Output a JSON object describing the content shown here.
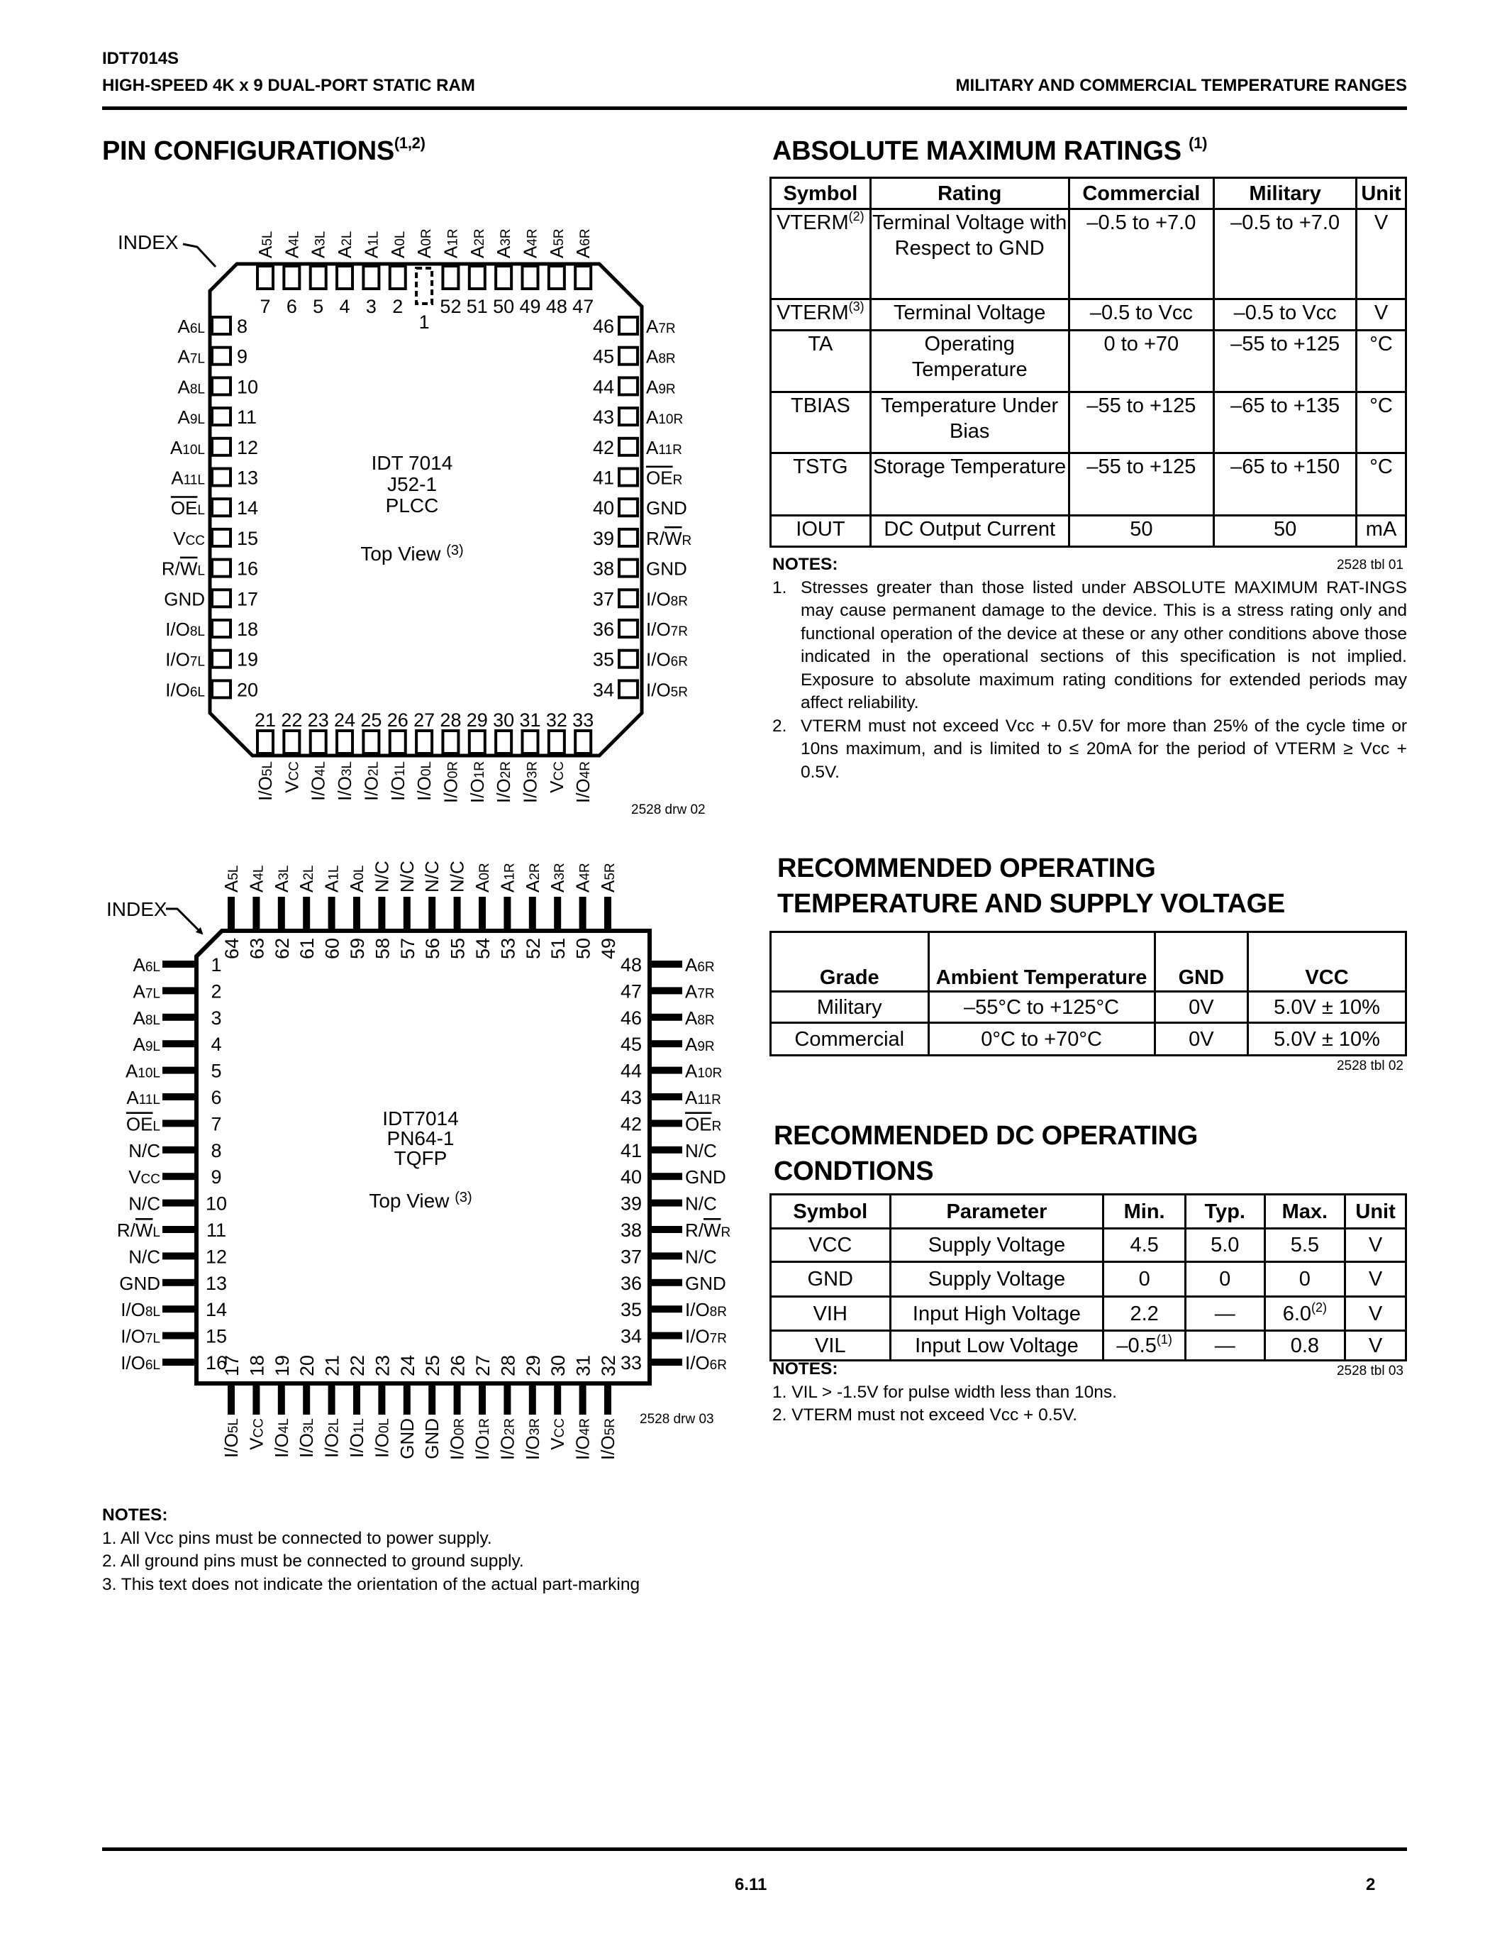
{
  "header": {
    "part": "IDT7014S",
    "product": "HIGH-SPEED 4K x 9 DUAL-PORT STATIC RAM",
    "range": "MILITARY AND COMMERCIAL TEMPERATURE RANGES"
  },
  "pin_config": {
    "title": "PIN CONFIGURATIONS",
    "title_sup": "(1,2)",
    "plcc": {
      "index_label": "INDEX",
      "center": [
        "IDT 7014",
        "J52-1",
        "PLCC"
      ],
      "top_view": "Top View ",
      "top_view_sup": "(3)",
      "drawing_id": "2528 drw 02",
      "top": [
        [
          7,
          "A",
          "",
          "5L"
        ],
        [
          6,
          "A",
          "",
          "4L"
        ],
        [
          5,
          "A",
          "",
          "3L"
        ],
        [
          4,
          "A",
          "",
          "2L"
        ],
        [
          3,
          "A",
          "",
          "1L"
        ],
        [
          2,
          "A",
          "",
          "0L"
        ],
        [
          1,
          "A",
          "",
          "0R"
        ],
        [
          52,
          "A",
          "",
          "1R"
        ],
        [
          51,
          "A",
          "",
          "2R"
        ],
        [
          50,
          "A",
          "",
          "3R"
        ],
        [
          49,
          "A",
          "",
          "4R"
        ],
        [
          48,
          "A",
          "",
          "5R"
        ],
        [
          47,
          "A",
          "",
          "6R"
        ]
      ],
      "left": [
        [
          8,
          "A",
          "",
          "6L"
        ],
        [
          9,
          "A",
          "",
          "7L"
        ],
        [
          10,
          "A",
          "",
          "8L"
        ],
        [
          11,
          "A",
          "",
          "9L"
        ],
        [
          12,
          "A",
          "",
          "10L"
        ],
        [
          13,
          "A",
          "",
          "11L"
        ],
        [
          14,
          "",
          "OE",
          "L"
        ],
        [
          15,
          "V",
          "",
          "CC"
        ],
        [
          16,
          "R/",
          "W",
          "L"
        ],
        [
          17,
          "GND",
          "",
          ""
        ],
        [
          18,
          "I/O",
          "",
          "8L"
        ],
        [
          19,
          "I/O",
          "",
          "7L"
        ],
        [
          20,
          "I/O",
          "",
          "6L"
        ]
      ],
      "right": [
        [
          46,
          "A",
          "",
          "7R"
        ],
        [
          45,
          "A",
          "",
          "8R"
        ],
        [
          44,
          "A",
          "",
          "9R"
        ],
        [
          43,
          "A",
          "",
          "10R"
        ],
        [
          42,
          "A",
          "",
          "11R"
        ],
        [
          41,
          "",
          "OE",
          "R"
        ],
        [
          40,
          "GND",
          "",
          ""
        ],
        [
          39,
          "R/",
          "W",
          "R"
        ],
        [
          38,
          "GND",
          "",
          ""
        ],
        [
          37,
          "I/O",
          "",
          "8R"
        ],
        [
          36,
          "I/O",
          "",
          "7R"
        ],
        [
          35,
          "I/O",
          "",
          "6R"
        ],
        [
          34,
          "I/O",
          "",
          "5R"
        ]
      ],
      "bottom": [
        [
          21,
          "I/O",
          "",
          "5L"
        ],
        [
          22,
          "V",
          "",
          "CC"
        ],
        [
          23,
          "I/O",
          "",
          "4L"
        ],
        [
          24,
          "I/O",
          "",
          "3L"
        ],
        [
          25,
          "I/O",
          "",
          "2L"
        ],
        [
          26,
          "I/O",
          "",
          "1L"
        ],
        [
          27,
          "I/O",
          "",
          "0L"
        ],
        [
          28,
          "I/O",
          "",
          "0R"
        ],
        [
          29,
          "I/O",
          "",
          "1R"
        ],
        [
          30,
          "I/O",
          "",
          "2R"
        ],
        [
          31,
          "I/O",
          "",
          "3R"
        ],
        [
          32,
          "V",
          "",
          "CC"
        ],
        [
          33,
          "I/O",
          "",
          "4R"
        ]
      ]
    },
    "tqfp": {
      "index_label": "INDEX",
      "center": [
        "IDT7014",
        "PN64-1",
        "TQFP"
      ],
      "top_view": "Top View ",
      "top_view_sup": "(3)",
      "drawing_id": "2528 drw 03",
      "top": [
        [
          64,
          "A",
          "",
          "5L"
        ],
        [
          63,
          "A",
          "",
          "4L"
        ],
        [
          62,
          "A",
          "",
          "3L"
        ],
        [
          61,
          "A",
          "",
          "2L"
        ],
        [
          60,
          "A",
          "",
          "1L"
        ],
        [
          59,
          "A",
          "",
          "0L"
        ],
        [
          58,
          "N/C",
          "",
          ""
        ],
        [
          57,
          "N/C",
          "",
          ""
        ],
        [
          56,
          "N/C",
          "",
          ""
        ],
        [
          55,
          "N/C",
          "",
          ""
        ],
        [
          54,
          "A",
          "",
          "0R"
        ],
        [
          53,
          "A",
          "",
          "1R"
        ],
        [
          52,
          "A",
          "",
          "2R"
        ],
        [
          51,
          "A",
          "",
          "3R"
        ],
        [
          50,
          "A",
          "",
          "4R"
        ],
        [
          49,
          "A",
          "",
          "5R"
        ]
      ],
      "left": [
        [
          1,
          "A",
          "",
          "6L"
        ],
        [
          2,
          "A",
          "",
          "7L"
        ],
        [
          3,
          "A",
          "",
          "8L"
        ],
        [
          4,
          "A",
          "",
          "9L"
        ],
        [
          5,
          "A",
          "",
          "10L"
        ],
        [
          6,
          "A",
          "",
          "11L"
        ],
        [
          7,
          "",
          "OE",
          "L"
        ],
        [
          8,
          "N/C",
          "",
          ""
        ],
        [
          9,
          "V",
          "",
          "CC"
        ],
        [
          10,
          "N/C",
          "",
          ""
        ],
        [
          11,
          "R/",
          "W",
          "L"
        ],
        [
          12,
          "N/C",
          "",
          ""
        ],
        [
          13,
          "GND",
          "",
          ""
        ],
        [
          14,
          "I/O",
          "",
          "8L"
        ],
        [
          15,
          "I/O",
          "",
          "7L"
        ],
        [
          16,
          "I/O",
          "",
          "6L"
        ]
      ],
      "right": [
        [
          48,
          "A",
          "",
          "6R"
        ],
        [
          47,
          "A",
          "",
          "7R"
        ],
        [
          46,
          "A",
          "",
          "8R"
        ],
        [
          45,
          "A",
          "",
          "9R"
        ],
        [
          44,
          "A",
          "",
          "10R"
        ],
        [
          43,
          "A",
          "",
          "11R"
        ],
        [
          42,
          "",
          "OE",
          "R"
        ],
        [
          41,
          "N/C",
          "",
          ""
        ],
        [
          40,
          "GND",
          "",
          ""
        ],
        [
          39,
          "N/C",
          "",
          ""
        ],
        [
          38,
          "R/",
          "W",
          "R"
        ],
        [
          37,
          "N/C",
          "",
          ""
        ],
        [
          36,
          "GND",
          "",
          ""
        ],
        [
          35,
          "I/O",
          "",
          "8R"
        ],
        [
          34,
          "I/O",
          "",
          "7R"
        ],
        [
          33,
          "I/O",
          "",
          "6R"
        ]
      ],
      "bottom": [
        [
          17,
          "I/O",
          "",
          "5L"
        ],
        [
          18,
          "V",
          "",
          "CC"
        ],
        [
          19,
          "I/O",
          "",
          "4L"
        ],
        [
          20,
          "I/O",
          "",
          "3L"
        ],
        [
          21,
          "I/O",
          "",
          "2L"
        ],
        [
          22,
          "I/O",
          "",
          "1L"
        ],
        [
          23,
          "I/O",
          "",
          "0L"
        ],
        [
          24,
          "GND",
          "",
          ""
        ],
        [
          25,
          "GND",
          "",
          ""
        ],
        [
          26,
          "I/O",
          "",
          "0R"
        ],
        [
          27,
          "I/O",
          "",
          "1R"
        ],
        [
          28,
          "I/O",
          "",
          "2R"
        ],
        [
          29,
          "I/O",
          "",
          "3R"
        ],
        [
          30,
          "V",
          "",
          "CC"
        ],
        [
          31,
          "I/O",
          "",
          "4R"
        ],
        [
          32,
          "I/O",
          "",
          "5R"
        ]
      ]
    },
    "notes_heading": "NOTES:",
    "notes": [
      "1. All Vcc pins must be connected to power supply.",
      "2. All ground pins must be connected to ground supply.",
      "3. This text does not indicate the orientation of the actual part-marking"
    ]
  },
  "abs_max": {
    "title": "ABSOLUTE MAXIMUM RATINGS ",
    "title_sup": "(1)",
    "headers": [
      "Symbol",
      "Rating",
      "Commercial",
      "Military",
      "Unit"
    ],
    "rows": [
      [
        {
          "t": "VTERM",
          "sup": "(2)"
        },
        "Terminal Voltage with Respect to GND",
        "–0.5 to +7.0",
        "–0.5 to +7.0",
        "V"
      ],
      [
        {
          "t": "VTERM",
          "sup": "(3)"
        },
        "Terminal Voltage",
        "–0.5 to Vcc",
        "–0.5 to Vcc",
        "V"
      ],
      [
        "TA",
        "Operating Temperature",
        "0 to +70",
        "–55 to +125",
        "°C"
      ],
      [
        "TBIAS",
        "Temperature Under Bias",
        "–55 to +125",
        "–65 to +135",
        "°C"
      ],
      [
        "TSTG",
        "Storage Temperature",
        "–55 to +125",
        "–65 to +150",
        "°C"
      ],
      [
        "IOUT",
        "DC Output Current",
        "50",
        "50",
        "mA"
      ]
    ],
    "table_id": "2528 tbl 01",
    "notes_heading": "NOTES:",
    "notes": [
      "Stresses greater than those listed under ABSOLUTE MAXIMUM RAT-INGS may cause permanent damage to the device.  This is a stress rating only and functional operation of the device at these or any other conditions above those indicated in the operational sections of this specification is not implied.  Exposure to absolute maximum rating conditions for extended periods may affect reliability.",
      "VTERM must not exceed Vcc + 0.5V for more than 25% of the cycle time or 10ns maximum, and is limited to ≤ 20mA for the period of  VTERM ≥ Vcc + 0.5V."
    ]
  },
  "rec_temp": {
    "title_lines": [
      "RECOMMENDED OPERATING",
      "TEMPERATURE AND SUPPLY VOLTAGE"
    ],
    "headers": [
      "Grade",
      "Ambient Temperature",
      "GND",
      "VCC"
    ],
    "rows": [
      [
        "Military",
        "–55°C to +125°C",
        "0V",
        "5.0V ± 10%"
      ],
      [
        "Commercial",
        "0°C to +70°C",
        "0V",
        "5.0V ± 10%"
      ]
    ],
    "table_id": "2528 tbl 02"
  },
  "rec_dc": {
    "title_lines": [
      "RECOMMENDED DC OPERATING",
      "CONDTIONS"
    ],
    "headers": [
      "Symbol",
      "Parameter",
      "Min.",
      "Typ.",
      "Max.",
      "Unit"
    ],
    "rows": [
      [
        "VCC",
        "Supply Voltage",
        "4.5",
        "5.0",
        "5.5",
        "V"
      ],
      [
        "GND",
        "Supply Voltage",
        "0",
        "0",
        "0",
        "V"
      ],
      [
        "VIH",
        "Input High Voltage",
        "2.2",
        "—",
        {
          "t": "6.0",
          "sup": "(2)"
        },
        "V"
      ],
      [
        "VIL",
        "Input Low Voltage",
        {
          "t": "–0.5",
          "sup": "(1)"
        },
        "—",
        "0.8",
        "V"
      ]
    ],
    "table_id": "2528 tbl 03",
    "notes_heading": "NOTES:",
    "notes": [
      "1.  VIL > -1.5V for pulse width less than 10ns.",
      "2.  VTERM must not exceed Vcc + 0.5V."
    ]
  },
  "footer": {
    "section": "6.11",
    "page": "2"
  }
}
